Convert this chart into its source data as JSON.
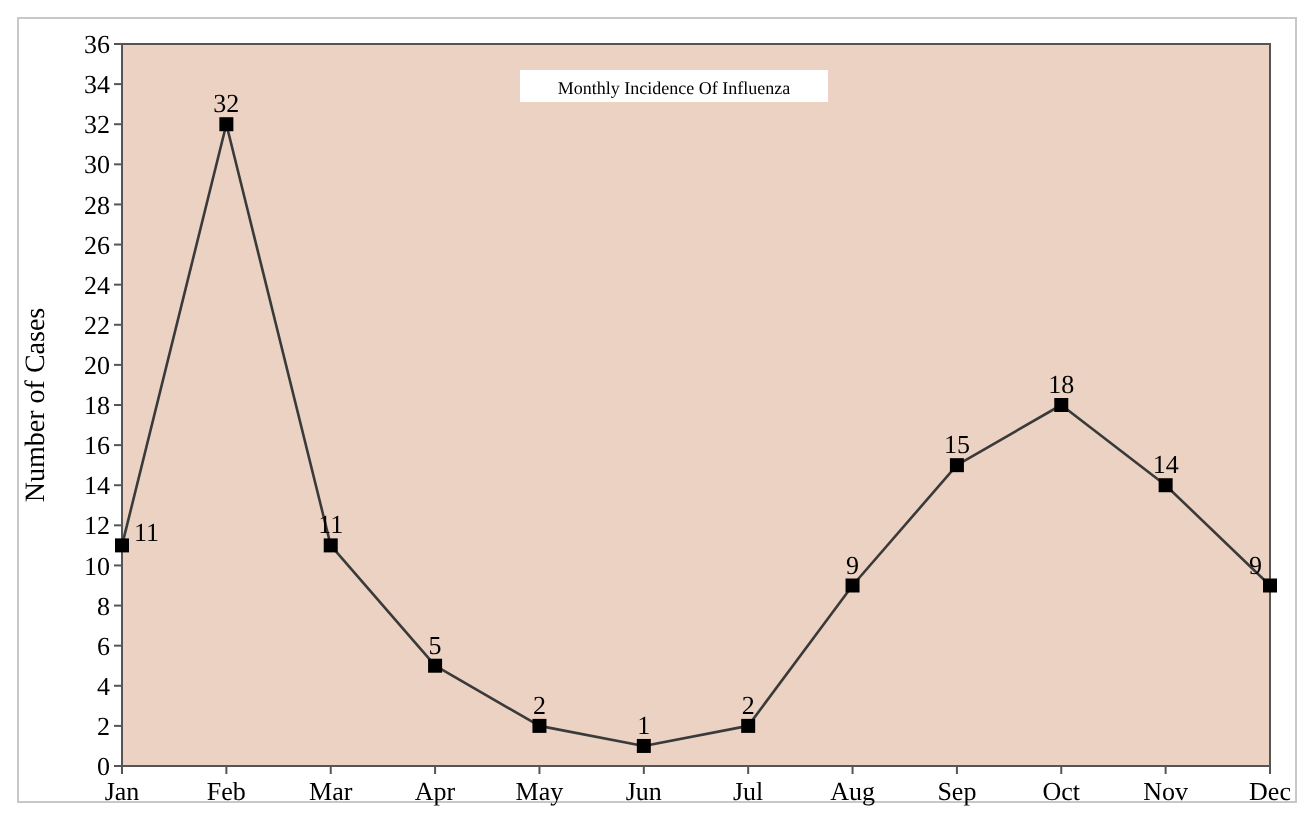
{
  "chart_data": {
    "type": "line",
    "title": "Monthly Incidence Of Influenza",
    "ylabel": "Number of Cases",
    "categories": [
      "Jan",
      "Feb",
      "Mar",
      "Apr",
      "May",
      "Jun",
      "Jul",
      "Aug",
      "Sep",
      "Oct",
      "Nov",
      "Dec"
    ],
    "series": [
      {
        "color": "#3a3a3a",
        "values": [
          11,
          32,
          11,
          5,
          2,
          1,
          2,
          9,
          15,
          18,
          14,
          9
        ]
      }
    ],
    "ylim": [
      0,
      36
    ],
    "yticks": [
      0,
      2,
      4,
      6,
      8,
      10,
      12,
      14,
      16,
      18,
      20,
      22,
      24,
      26,
      28,
      30,
      32,
      34,
      36
    ],
    "grid": false,
    "marker": "square",
    "line_style": "solid",
    "data_labels": true
  }
}
